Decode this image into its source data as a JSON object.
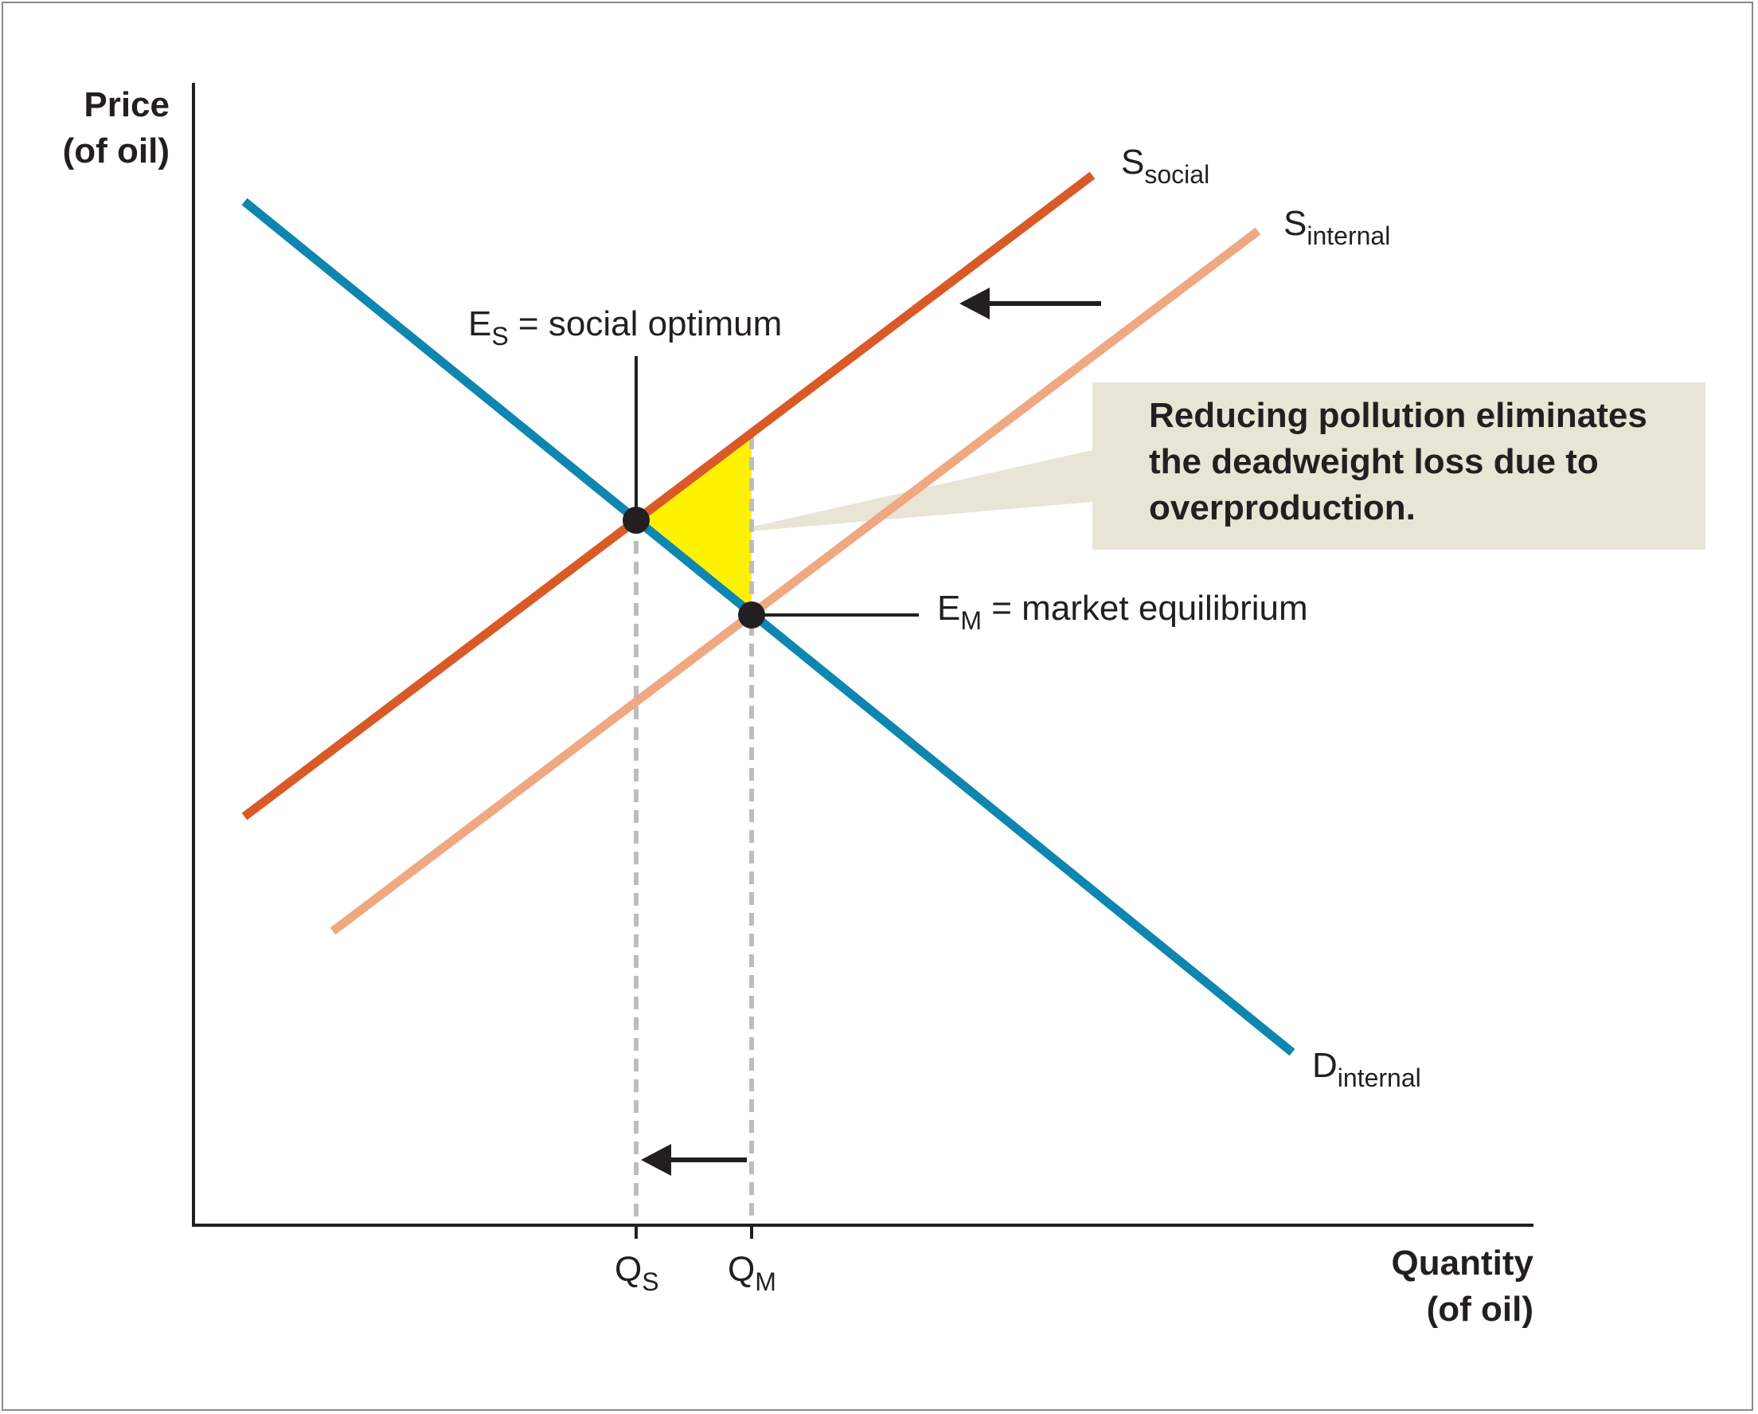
{
  "axes": {
    "y_label_line1": "Price",
    "y_label_line2": "(of oil)",
    "x_label_line1": "Quantity",
    "x_label_line2": "(of oil)"
  },
  "curves": {
    "s_social": {
      "main": "S",
      "sub": "social",
      "color": "#d95a26"
    },
    "s_internal": {
      "main": "S",
      "sub": "internal",
      "color": "#f0a882"
    },
    "d_internal": {
      "main": "D",
      "sub": "internal",
      "color": "#0e86b0"
    }
  },
  "points": {
    "social_optimum": {
      "main": "E",
      "sub": "S",
      "text": " = social optimum"
    },
    "market_equilibrium": {
      "main": "E",
      "sub": "M",
      "text": " = market equilibrium"
    }
  },
  "ticks": {
    "qs": {
      "main": "Q",
      "sub": "S"
    },
    "qm": {
      "main": "Q",
      "sub": "M"
    }
  },
  "callout": {
    "text": "Reducing pollution eliminates the deadweight loss due to overproduction.",
    "background": "#e8e5d6"
  },
  "colors": {
    "deadweight_loss": "#fff200",
    "guide_lines": "#bdbdbd",
    "axis": "#231f20"
  }
}
